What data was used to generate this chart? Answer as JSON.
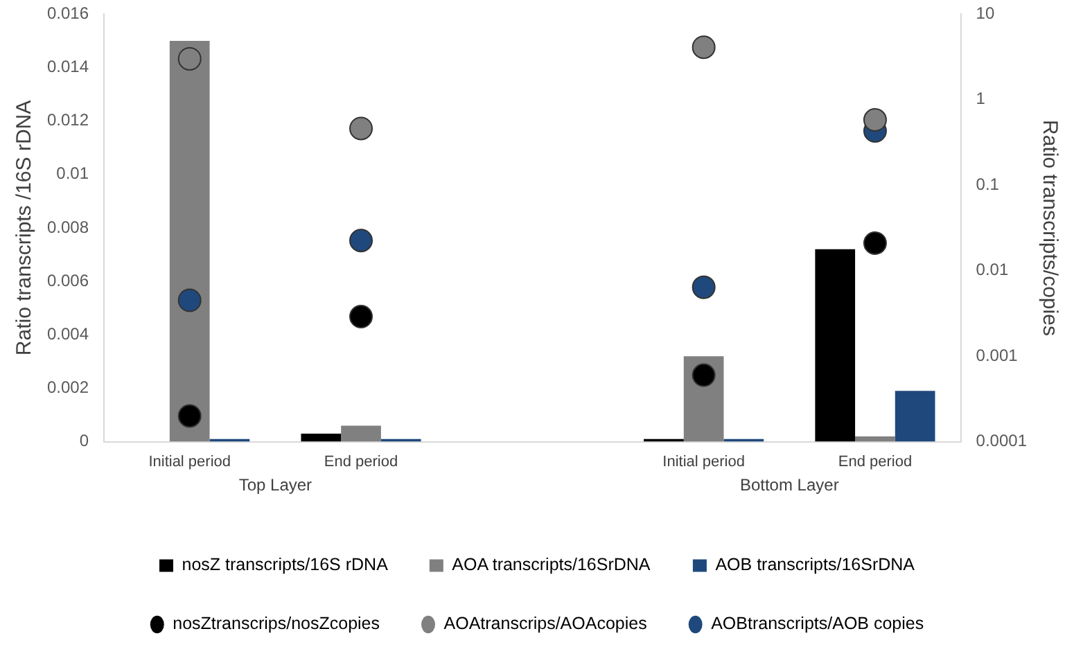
{
  "chart_data": {
    "type": "bar",
    "ylabel": "Ratio transcripts /16S rDNA",
    "y2label": "Ratio transcripts/copies",
    "categories": [
      "Initial period",
      "End period",
      null,
      "Initial period",
      "End period"
    ],
    "annotations": [
      "Top Layer",
      "Bottom Layer"
    ],
    "series": [
      {
        "name": "nosZ transcripts/16S rDNA",
        "color": "#000000",
        "values": [
          0,
          0.0003,
          null,
          0.0001,
          0.0072
        ]
      },
      {
        "name": "AOA transcripts/16SrDNA",
        "color": "#808080",
        "values": [
          0.015,
          0.0006,
          null,
          0.0032,
          0.0002
        ]
      },
      {
        "name": "AOB transcripts/16SrDNA",
        "color": "#1f497d",
        "values": [
          0.0001,
          0.0001,
          null,
          0.0001,
          0.0019
        ]
      },
      {
        "name": "nosZtranscrips/nosZcopies",
        "type": "scatter",
        "axis": "y2",
        "marker": "circle",
        "color": "#000000",
        "values": [
          0.0002,
          0.0029,
          null,
          0.0006,
          0.021
        ]
      },
      {
        "name": "AOAtranscrips/AOAcopies",
        "type": "scatter",
        "axis": "y2",
        "marker": "circle",
        "color": "#808080",
        "values": [
          3,
          0.46,
          null,
          4.1,
          0.58
        ]
      },
      {
        "name": "AOBtranscripts/AOB copies",
        "type": "scatter",
        "axis": "y2",
        "marker": "circle",
        "color": "#1f497d",
        "values": [
          0.0045,
          0.0225,
          null,
          0.0064,
          0.43
        ]
      }
    ],
    "ylim": [
      0,
      0.016
    ],
    "yticks": [
      0,
      0.002,
      0.004,
      0.006,
      0.008,
      0.01,
      0.012,
      0.014,
      0.016
    ],
    "y2lim": [
      0.0001,
      10
    ],
    "y2ticks": [
      0.0001,
      0.001,
      0.01,
      0.1,
      1,
      10
    ],
    "log": "y2",
    "grid": false,
    "legend": "bottom"
  }
}
